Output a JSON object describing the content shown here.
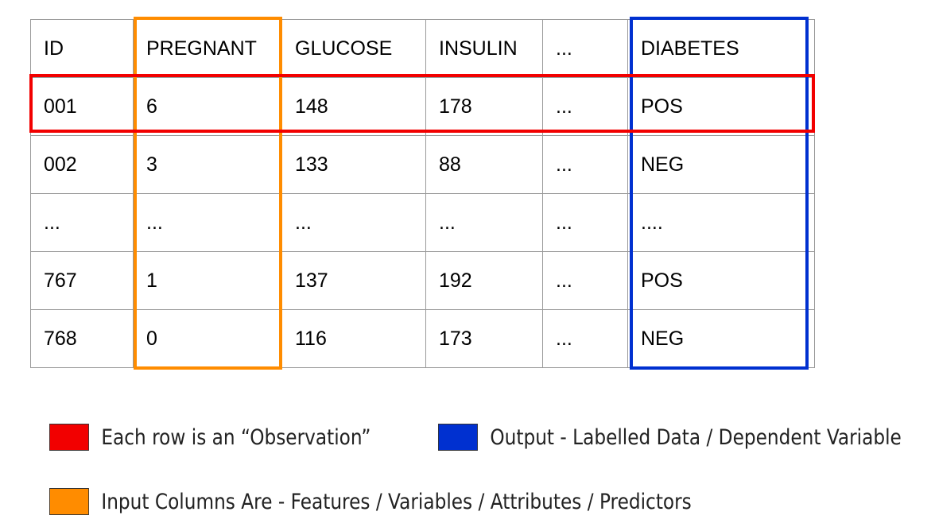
{
  "table": {
    "headers": [
      "ID",
      "PREGNANT",
      "GLUCOSE",
      "INSULIN",
      "...",
      "DIABETES"
    ],
    "rows": [
      [
        "001",
        "6",
        "148",
        "178",
        "...",
        "POS"
      ],
      [
        "002",
        "3",
        "133",
        "88",
        "...",
        "NEG"
      ],
      [
        "...",
        "...",
        "...",
        "...",
        "...",
        "...."
      ],
      [
        "767",
        "1",
        "137",
        "192",
        "...",
        "POS"
      ],
      [
        "768",
        "0",
        "116",
        "173",
        "...",
        "NEG"
      ]
    ]
  },
  "highlight_colors": {
    "observation": "#f20000",
    "input": "#ff8c00",
    "output": "#0030d0"
  },
  "legend": {
    "observation": "Each row is an “Observation”",
    "output": "Output - Labelled Data / Dependent Variable",
    "input": "Input Columns Are  - Features  /  Variables /  Attributes  /  Predictors"
  }
}
